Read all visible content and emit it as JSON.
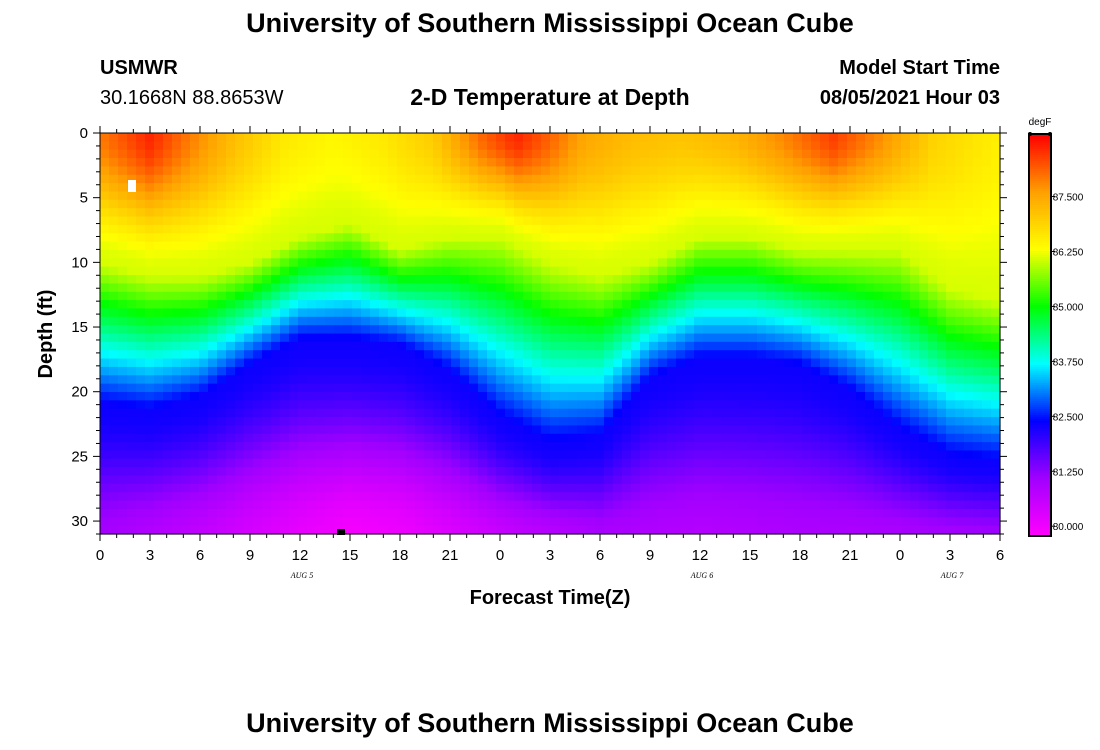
{
  "header": {
    "title": "University of Southern Mississippi Ocean Cube",
    "station": "USMWR",
    "coordinates": "30.1668N  88.8653W",
    "subtitle": "2-D Temperature at Depth",
    "start_label": "Model Start Time",
    "start_value": "08/05/2021 Hour 03"
  },
  "footer": {
    "title": "University of Southern Mississippi Ocean Cube"
  },
  "chart_data": {
    "type": "heatmap",
    "title": "2-D Temperature at Depth",
    "xlabel": "Forecast Time(Z)",
    "ylabel": "Depth (ft)",
    "x_range_hours": [
      0,
      54
    ],
    "x_ticks": [
      {
        "h": 0,
        "label": "0"
      },
      {
        "h": 3,
        "label": "3"
      },
      {
        "h": 6,
        "label": "6"
      },
      {
        "h": 9,
        "label": "9"
      },
      {
        "h": 12,
        "label": "12"
      },
      {
        "h": 15,
        "label": "15"
      },
      {
        "h": 18,
        "label": "18"
      },
      {
        "h": 21,
        "label": "21"
      },
      {
        "h": 24,
        "label": "0"
      },
      {
        "h": 27,
        "label": "3"
      },
      {
        "h": 30,
        "label": "6"
      },
      {
        "h": 33,
        "label": "9"
      },
      {
        "h": 36,
        "label": "12"
      },
      {
        "h": 39,
        "label": "15"
      },
      {
        "h": 42,
        "label": "18"
      },
      {
        "h": 45,
        "label": "21"
      },
      {
        "h": 48,
        "label": "0"
      },
      {
        "h": 51,
        "label": "3"
      },
      {
        "h": 54,
        "label": "6"
      }
    ],
    "date_labels": [
      {
        "h": 12,
        "label": "AUG 5"
      },
      {
        "h": 36,
        "label": "AUG 6"
      },
      {
        "h": 51,
        "label": "AUG 7"
      }
    ],
    "y_range_ft": [
      0,
      31
    ],
    "y_ticks": [
      0,
      5,
      10,
      15,
      20,
      25,
      30
    ],
    "colorbar": {
      "unit": "degF",
      "range": [
        79.8,
        88.9
      ],
      "tick_values": [
        87.5,
        86.25,
        85.0,
        83.75,
        82.5,
        81.25,
        80.0
      ],
      "tick_labels": [
        "87.500",
        "86.250",
        "85.000",
        "83.750",
        "82.500",
        "81.250",
        "80.000"
      ],
      "colors_low_to_high": [
        "#ff00ff",
        "#a000ff",
        "#0000ff",
        "#00ffff",
        "#00ff00",
        "#ffff00",
        "#ffa000",
        "#ff0000"
      ]
    },
    "surface_temperature_degF": {
      "hours": [
        0,
        3,
        5,
        8,
        11,
        14,
        17,
        20,
        23,
        25,
        27,
        29,
        32,
        35,
        38,
        41,
        44,
        47,
        50,
        54
      ],
      "values": [
        87.9,
        88.6,
        88.0,
        87.2,
        86.6,
        86.4,
        86.6,
        87.0,
        88.1,
        88.6,
        88.1,
        87.5,
        87.2,
        87.1,
        87.3,
        87.8,
        88.4,
        87.7,
        86.9,
        86.5
      ]
    },
    "mixed_layer_depth_ft": {
      "hours": [
        0,
        3,
        6,
        9,
        12,
        15,
        18,
        21,
        24,
        27,
        30,
        33,
        36,
        39,
        42,
        45,
        48,
        51,
        54
      ],
      "values": [
        10,
        11,
        11,
        10,
        8,
        7,
        9,
        8,
        8,
        10,
        11,
        10,
        8,
        8,
        9,
        9,
        9,
        12,
        13
      ]
    },
    "thermocline_depth_ft": {
      "hours": [
        0,
        3,
        6,
        9,
        12,
        15,
        18,
        21,
        24,
        27,
        30,
        33,
        36,
        39,
        42,
        45,
        48,
        51,
        54
      ],
      "values": [
        21,
        21.5,
        20.5,
        18,
        16,
        16,
        16.5,
        18.5,
        22,
        24,
        23.5,
        19,
        17.5,
        17.5,
        18,
        20,
        23,
        25,
        25.5
      ]
    },
    "bottom_temperature_degF": {
      "hours": [
        0,
        6,
        12,
        15,
        18,
        24,
        30,
        36,
        42,
        48,
        54
      ],
      "values": [
        81.0,
        80.6,
        80.1,
        79.9,
        80.0,
        80.5,
        80.9,
        80.8,
        80.9,
        80.9,
        81.0
      ]
    }
  }
}
